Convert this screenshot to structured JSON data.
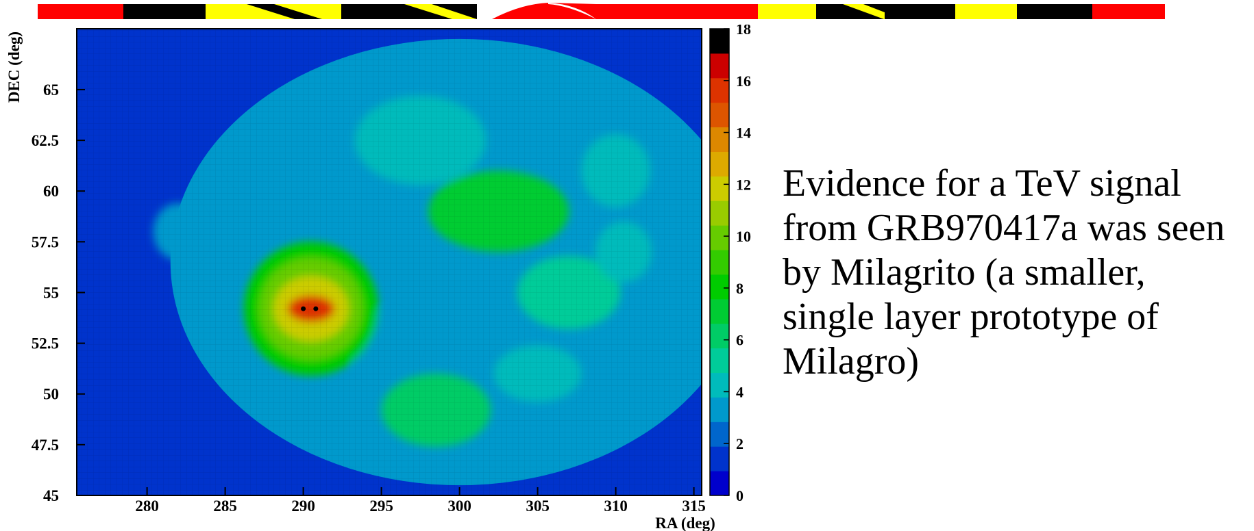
{
  "caption": {
    "lines": [
      "Evidence for a TeV signal",
      "from GRB970417a was seen",
      "by Milagrito (a smaller,",
      "single layer prototype of",
      "Milagro)"
    ]
  },
  "banner": {
    "segments": [
      {
        "color": "#ff0000"
      },
      {
        "color": "#000000"
      },
      {
        "color": "#ffff00"
      },
      {
        "color": "#000000"
      },
      {
        "color": "#ff0000"
      },
      {
        "color": "#ffff00"
      },
      {
        "color": "#000000"
      },
      {
        "color": "#ffff00"
      },
      {
        "color": "#000000"
      },
      {
        "color": "#ff0000"
      }
    ]
  },
  "chart_data": {
    "type": "heatmap",
    "title": "",
    "xlabel": "RA (deg)",
    "ylabel": "DEC (deg)",
    "xlim": [
      275.5,
      315.5
    ],
    "ylim": [
      45,
      68
    ],
    "xticks": [
      280,
      285,
      290,
      295,
      300,
      305,
      310,
      315
    ],
    "yticks": [
      45,
      47.5,
      50,
      52.5,
      55,
      57.5,
      60,
      62.5,
      65
    ],
    "ytick_labels": [
      "45",
      "47.5",
      "50",
      "52.5",
      "55",
      "57.5",
      "60",
      "62.5",
      "65"
    ],
    "colorbar": {
      "range": [
        0,
        18
      ],
      "ticks": [
        0,
        2,
        4,
        6,
        8,
        10,
        12,
        14,
        16,
        18
      ],
      "colors": [
        "#0000cc",
        "#0033cc",
        "#0066cc",
        "#0099cc",
        "#00bbbb",
        "#00cc99",
        "#00cc66",
        "#00cc33",
        "#00cc00",
        "#33cc00",
        "#66cc00",
        "#99cc00",
        "#cccc00",
        "#ddaa00",
        "#dd8800",
        "#dd5500",
        "#dd3300",
        "#cc0000",
        "#000000"
      ]
    },
    "background_value": 1,
    "field": {
      "center": [
        300,
        56.5
      ],
      "ra_halfwidth": 18.5,
      "dec_halfwidth": 11
    },
    "hotspot": {
      "center": [
        290.5,
        54.2
      ],
      "peak_value": 18
    },
    "hotspot_contours": [
      {
        "ra_halfwidth": 4.3,
        "dec_halfwidth": 3.3,
        "value": 8
      },
      {
        "ra_halfwidth": 3.3,
        "dec_halfwidth": 2.5,
        "value": 10
      },
      {
        "ra_halfwidth": 2.4,
        "dec_halfwidth": 1.6,
        "value": 12
      },
      {
        "ra_halfwidth": 1.5,
        "dec_halfwidth": 0.65,
        "value": 16
      }
    ],
    "blobs": [
      {
        "center": [
          302.5,
          59
        ],
        "ra_halfwidth": 4.5,
        "dec_halfwidth": 2.0,
        "value": 7
      },
      {
        "center": [
          298.5,
          49.2
        ],
        "ra_halfwidth": 3.5,
        "dec_halfwidth": 1.8,
        "value": 6
      },
      {
        "center": [
          307,
          55
        ],
        "ra_halfwidth": 3.3,
        "dec_halfwidth": 1.8,
        "value": 5
      },
      {
        "center": [
          305,
          51
        ],
        "ra_halfwidth": 2.8,
        "dec_halfwidth": 1.4,
        "value": 4
      },
      {
        "center": [
          297.5,
          62.5
        ],
        "ra_halfwidth": 4.2,
        "dec_halfwidth": 2.2,
        "value": 4
      },
      {
        "center": [
          288.5,
          61.5
        ],
        "ra_halfwidth": 3.2,
        "dec_halfwidth": 1.5,
        "value": 3
      },
      {
        "center": [
          310,
          61
        ],
        "ra_halfwidth": 2.2,
        "dec_halfwidth": 1.8,
        "value": 4
      },
      {
        "center": [
          310.5,
          57
        ],
        "ra_halfwidth": 1.8,
        "dec_halfwidth": 1.5,
        "value": 4
      },
      {
        "center": [
          282,
          58
        ],
        "ra_halfwidth": 1.6,
        "dec_halfwidth": 1.4,
        "value": 3
      },
      {
        "center": [
          295,
          52.5
        ],
        "ra_halfwidth": 2.2,
        "dec_halfwidth": 1.6,
        "value": 3
      }
    ]
  }
}
